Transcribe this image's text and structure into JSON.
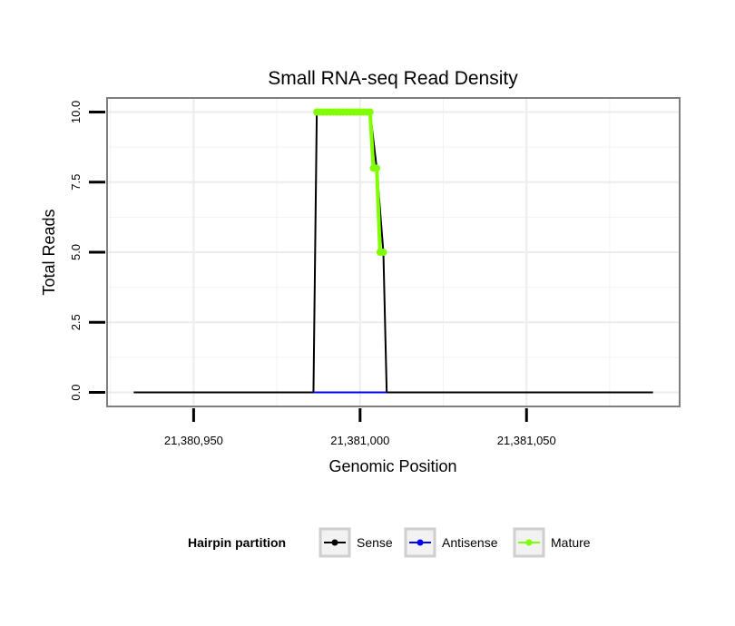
{
  "chart_data": {
    "type": "line",
    "title": "Small RNA-seq Read Density",
    "xlabel": "Genomic Position",
    "ylabel": "Total Reads",
    "xlim": [
      21380924,
      21381096
    ],
    "ylim": [
      -0.5,
      10.5
    ],
    "xticks": [
      21380950,
      21381000,
      21381050
    ],
    "xtick_labels": [
      "21,380,950",
      "21,381,000",
      "21,381,050"
    ],
    "yticks": [
      0,
      2.5,
      5,
      7.5,
      10
    ],
    "ytick_labels": [
      "0.0",
      "2.5",
      "5.0",
      "7.5",
      "10.0"
    ],
    "grid": true,
    "legend": {
      "title": "Hairpin partition",
      "position": "bottom",
      "entries": [
        "Sense",
        "Antisense",
        "Mature"
      ]
    },
    "series": [
      {
        "name": "Sense",
        "color": "#000000",
        "x": [
          21380932,
          21380986,
          21380987,
          21381003,
          21381005,
          21381007,
          21381008,
          21381088
        ],
        "y": [
          0,
          0,
          10,
          10,
          8,
          5,
          0,
          0
        ]
      },
      {
        "name": "Antisense",
        "color": "#0000ff",
        "x": [
          21380986,
          21381008
        ],
        "y": [
          0,
          0
        ]
      },
      {
        "name": "Mature",
        "color": "#7fff00",
        "x": [
          21380987,
          21380988,
          21380989,
          21380990,
          21380991,
          21380992,
          21380993,
          21380994,
          21380995,
          21380996,
          21380997,
          21380998,
          21380999,
          21381000,
          21381001,
          21381002,
          21381003,
          21381004,
          21381005,
          21381006,
          21381007
        ],
        "y": [
          10,
          10,
          10,
          10,
          10,
          10,
          10,
          10,
          10,
          10,
          10,
          10,
          10,
          10,
          10,
          10,
          10,
          8,
          8,
          5,
          5
        ]
      }
    ]
  }
}
